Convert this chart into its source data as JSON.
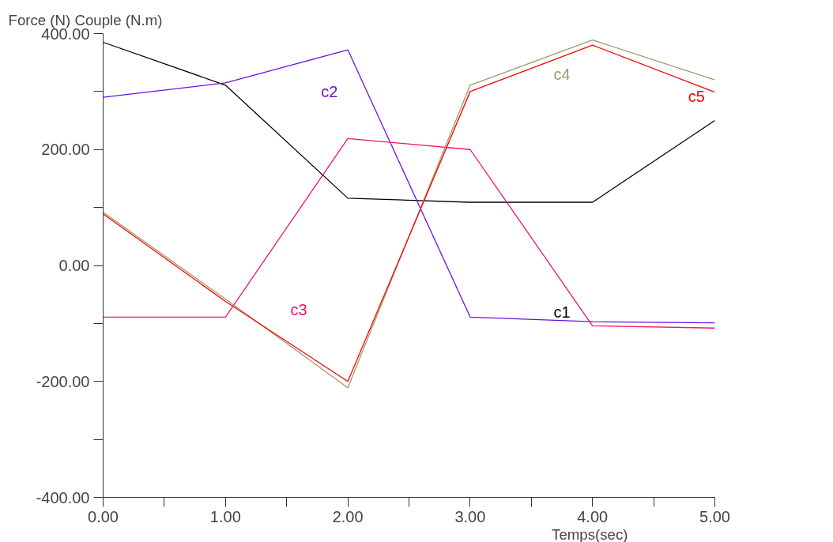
{
  "chart_data": {
    "type": "line",
    "ylabel": "Force (N) Couple (N.m)",
    "xlabel": "Temps(sec)",
    "x": [
      0,
      1,
      2,
      3,
      4,
      5
    ],
    "series": [
      {
        "name": "c1",
        "color": "#000000",
        "values": [
          385,
          311,
          116,
          109,
          109,
          250
        ]
      },
      {
        "name": "c2",
        "color": "#6a10e0",
        "values": [
          290,
          315,
          372,
          -89,
          -97,
          -99
        ]
      },
      {
        "name": "c3",
        "color": "#f0146e",
        "values": [
          -89,
          -89,
          219,
          200,
          -104,
          -108
        ]
      },
      {
        "name": "c4",
        "color": "#9b9b6e",
        "values": [
          92,
          -58,
          -211,
          311,
          389,
          320
        ]
      },
      {
        "name": "c5",
        "color": "#ff0000",
        "values": [
          89,
          -62,
          -200,
          300,
          380,
          299
        ]
      }
    ],
    "xlim": [
      0,
      5
    ],
    "ylim": [
      -400,
      400
    ],
    "xticks": [
      {
        "value": 0,
        "label": "0.00"
      },
      {
        "value": 0.5,
        "label": null
      },
      {
        "value": 1,
        "label": "1.00"
      },
      {
        "value": 1.5,
        "label": null
      },
      {
        "value": 2,
        "label": "2.00"
      },
      {
        "value": 2.5,
        "label": null
      },
      {
        "value": 3,
        "label": "3.00"
      },
      {
        "value": 3.5,
        "label": null
      },
      {
        "value": 4,
        "label": "4.00"
      },
      {
        "value": 4.5,
        "label": null
      },
      {
        "value": 5,
        "label": "5.00"
      }
    ],
    "yticks": [
      {
        "value": -400,
        "label": "-400.00"
      },
      {
        "value": -300,
        "label": null
      },
      {
        "value": -200,
        "label": "-200.00"
      },
      {
        "value": -100,
        "label": null
      },
      {
        "value": 0,
        "label": "0.00"
      },
      {
        "value": 100,
        "label": null
      },
      {
        "value": 200,
        "label": "200.00"
      },
      {
        "value": 300,
        "label": null
      },
      {
        "value": 400,
        "label": "400.00"
      }
    ],
    "grid": false,
    "legend": false,
    "marker": "none",
    "line_style": "solid"
  }
}
